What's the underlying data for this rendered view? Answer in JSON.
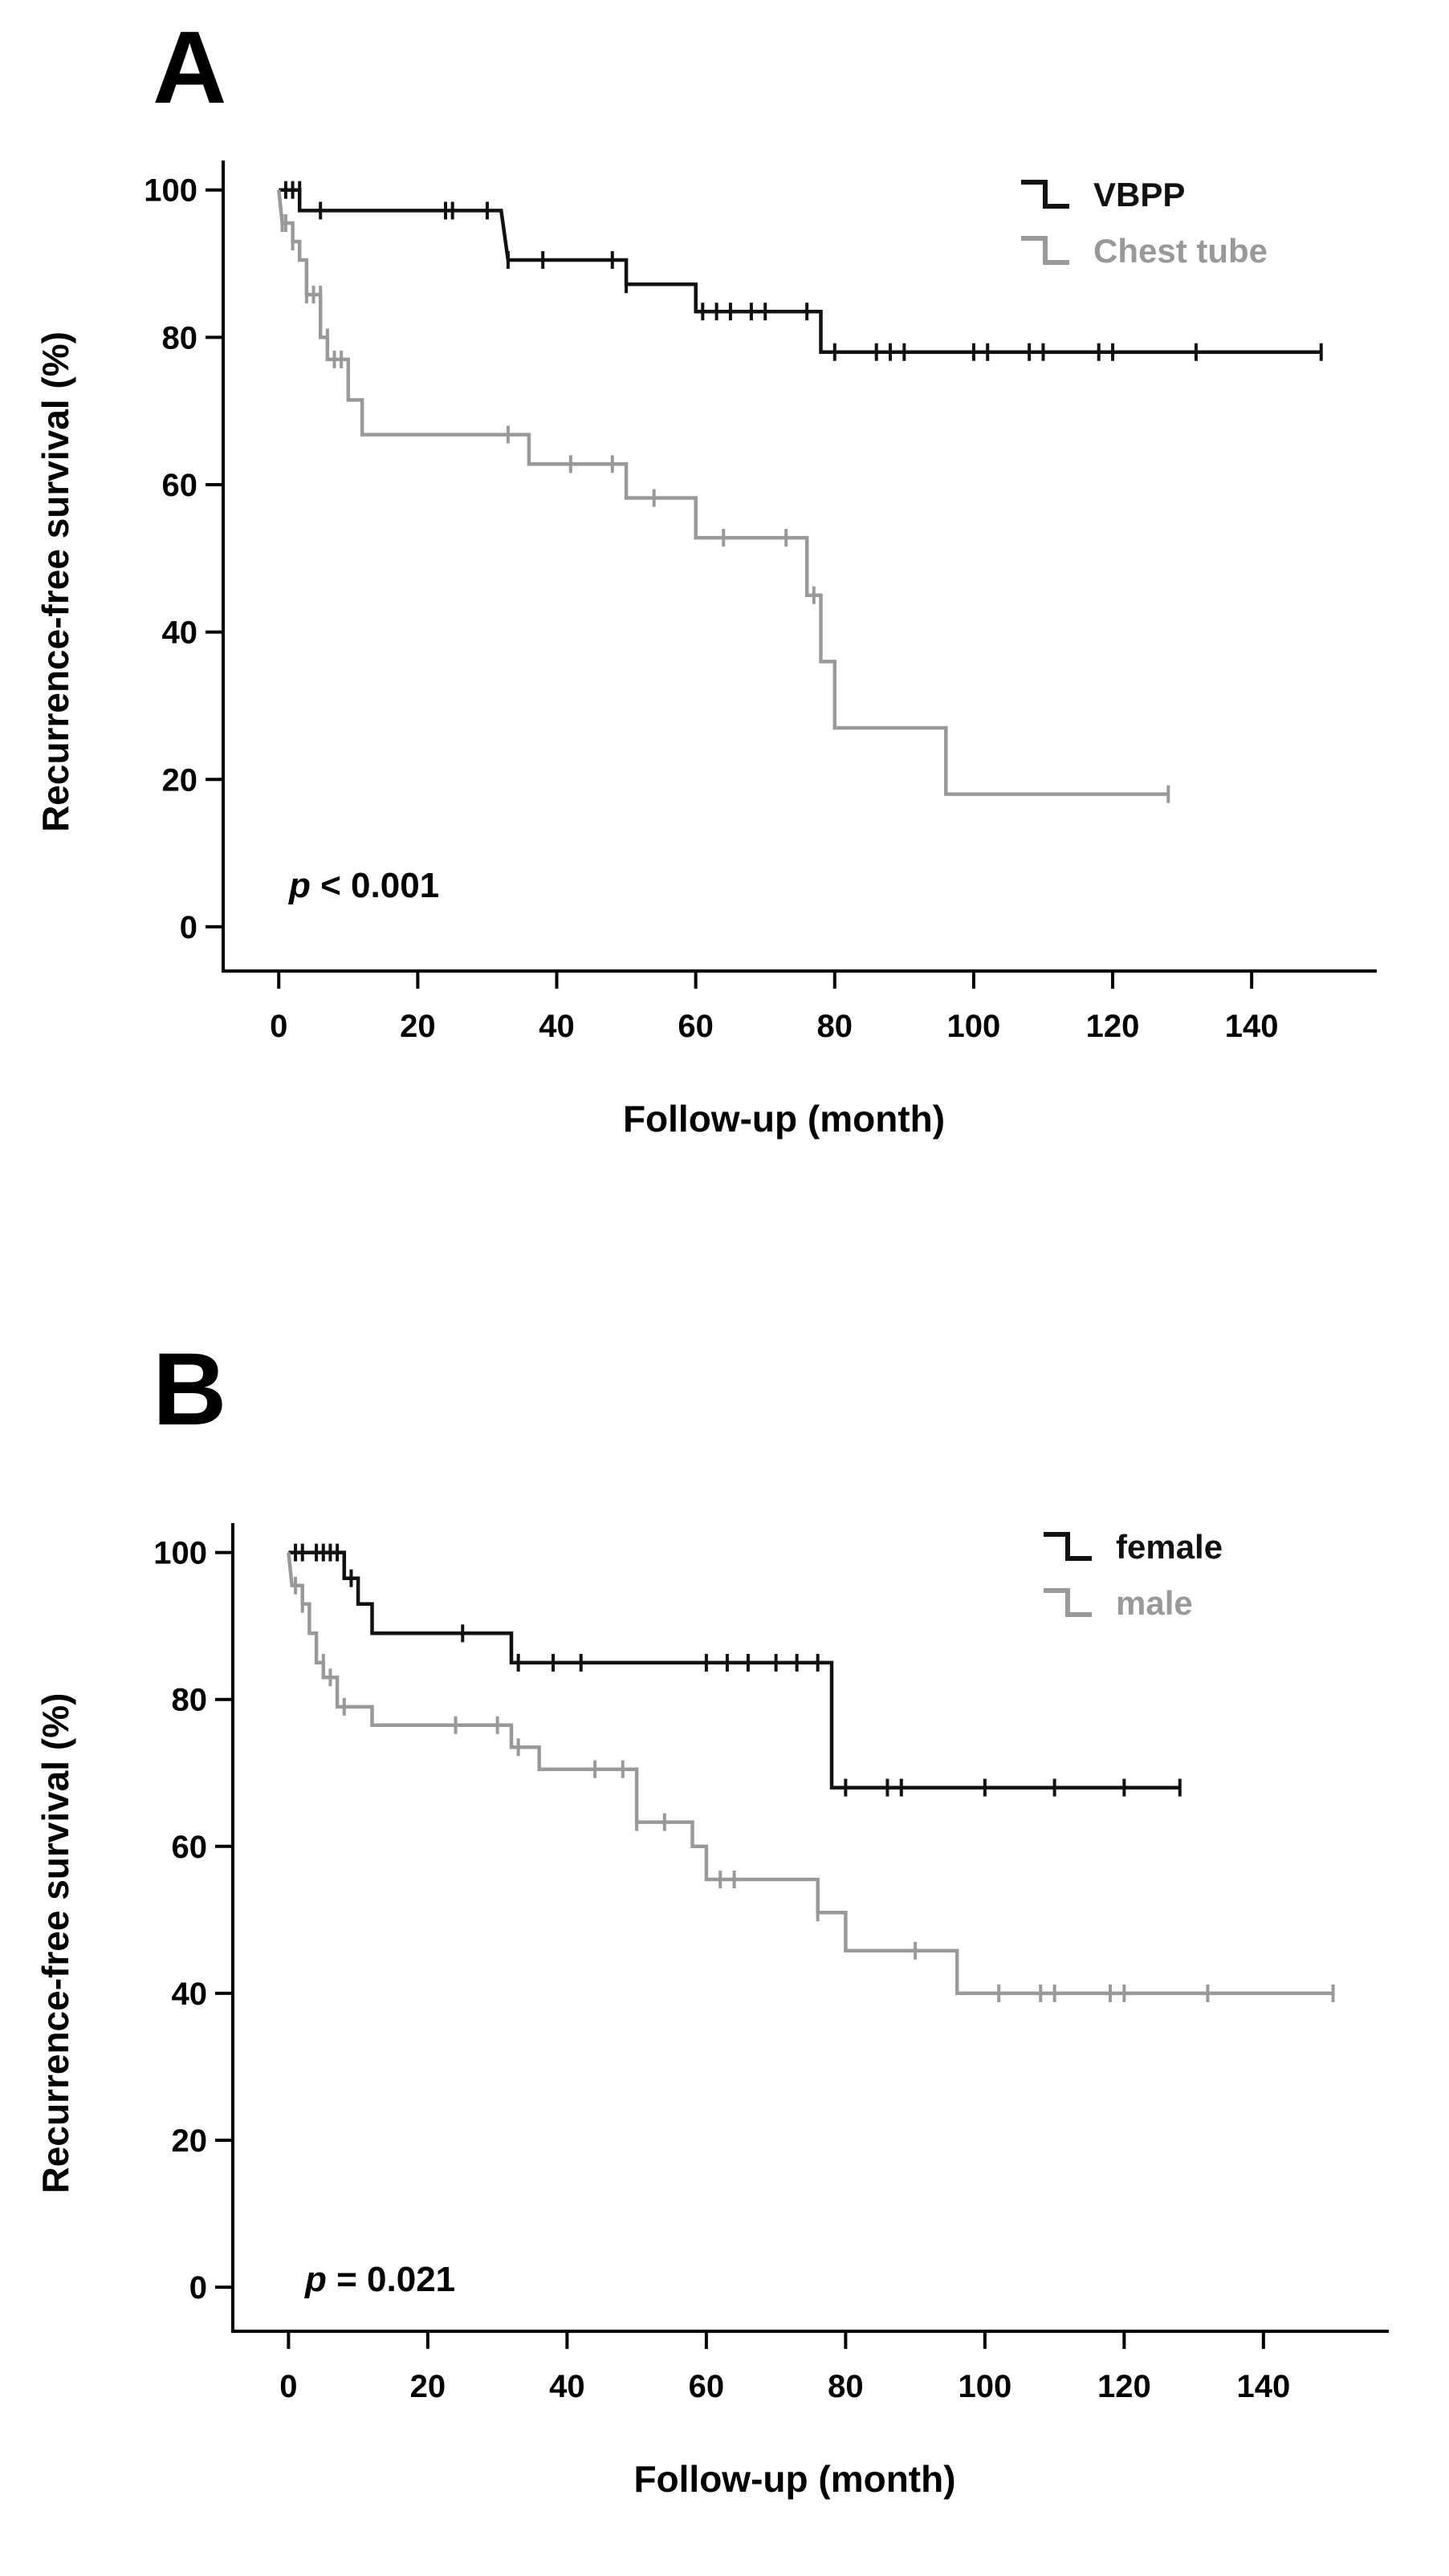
{
  "chart_data": [
    {
      "panel": "A",
      "type": "line",
      "xlabel": "Follow-up  (month)",
      "ylabel": "Recurrence-free  survival (%)",
      "xlim": [
        -8,
        158
      ],
      "ylim": [
        -6,
        104
      ],
      "xticks": [
        0,
        20,
        40,
        60,
        80,
        100,
        120,
        140
      ],
      "yticks": [
        0,
        20,
        40,
        60,
        80,
        100
      ],
      "legend_position": "top-right",
      "annotation": {
        "italic": "p",
        "rest": " < 0.001"
      },
      "series": [
        {
          "name": "VBPP",
          "color": "#111111",
          "steps": [
            [
              0,
              100
            ],
            [
              3,
              100
            ],
            [
              3,
              97.2
            ],
            [
              32,
              97.2
            ],
            [
              32,
              97.2
            ],
            [
              33,
              90.5
            ],
            [
              50,
              90.5
            ],
            [
              50,
              87.2
            ],
            [
              60,
              87.2
            ],
            [
              60,
              83.5
            ],
            [
              78,
              83.5
            ],
            [
              78,
              78
            ],
            [
              150,
              78
            ]
          ],
          "censors": [
            [
              1,
              100
            ],
            [
              2,
              100
            ],
            [
              3,
              100
            ],
            [
              6,
              97.2
            ],
            [
              24,
              97.2
            ],
            [
              25,
              97.2
            ],
            [
              30,
              97.2
            ],
            [
              33,
              90.5
            ],
            [
              38,
              90.5
            ],
            [
              48,
              90.5
            ],
            [
              50,
              87.2
            ],
            [
              61,
              83.5
            ],
            [
              63,
              83.5
            ],
            [
              65,
              83.5
            ],
            [
              68,
              83.5
            ],
            [
              70,
              83.5
            ],
            [
              76,
              83.5
            ],
            [
              80,
              78
            ],
            [
              86,
              78
            ],
            [
              88,
              78
            ],
            [
              90,
              78
            ],
            [
              100,
              78
            ],
            [
              102,
              78
            ],
            [
              108,
              78
            ],
            [
              110,
              78
            ],
            [
              118,
              78
            ],
            [
              120,
              78
            ],
            [
              132,
              78
            ],
            [
              150,
              78
            ]
          ]
        },
        {
          "name": "Chest tube",
          "color": "#999999",
          "steps": [
            [
              0,
              100
            ],
            [
              0.5,
              95.5
            ],
            [
              2,
              95.5
            ],
            [
              2,
              93
            ],
            [
              3,
              93
            ],
            [
              3,
              90.5
            ],
            [
              4,
              90.5
            ],
            [
              4,
              85.8
            ],
            [
              6,
              85.8
            ],
            [
              6,
              80
            ],
            [
              7,
              80
            ],
            [
              7,
              77
            ],
            [
              10,
              77
            ],
            [
              10,
              71.5
            ],
            [
              12,
              71.5
            ],
            [
              12,
              66.8
            ],
            [
              36,
              66.8
            ],
            [
              36,
              62.8
            ],
            [
              50,
              62.8
            ],
            [
              50,
              58.2
            ],
            [
              60,
              58.2
            ],
            [
              60,
              52.8
            ],
            [
              76,
              52.8
            ],
            [
              76,
              45
            ],
            [
              78,
              45
            ],
            [
              78,
              36
            ],
            [
              80,
              36
            ],
            [
              80,
              27
            ],
            [
              96,
              27
            ],
            [
              96,
              18
            ],
            [
              128,
              18
            ]
          ],
          "censors": [
            [
              0.5,
              95.5
            ],
            [
              1,
              95.5
            ],
            [
              2,
              93
            ],
            [
              4,
              85.8
            ],
            [
              5,
              85.8
            ],
            [
              6,
              85.8
            ],
            [
              7,
              80
            ],
            [
              8,
              77
            ],
            [
              9,
              77
            ],
            [
              33,
              66.8
            ],
            [
              42,
              62.8
            ],
            [
              48,
              62.8
            ],
            [
              54,
              58.2
            ],
            [
              64,
              52.8
            ],
            [
              73,
              52.8
            ],
            [
              77,
              45
            ],
            [
              128,
              18
            ]
          ]
        }
      ]
    },
    {
      "panel": "B",
      "type": "line",
      "xlabel": "Follow-up  (month)",
      "ylabel": "Recurrence-free  survival (%)",
      "xlim": [
        -8,
        158
      ],
      "ylim": [
        -6,
        104
      ],
      "xticks": [
        0,
        20,
        40,
        60,
        80,
        100,
        120,
        140
      ],
      "yticks": [
        0,
        20,
        40,
        60,
        80,
        100
      ],
      "legend_position": "top-right",
      "annotation": {
        "italic": "p",
        "rest": " = 0.021"
      },
      "series": [
        {
          "name": "female",
          "color": "#111111",
          "steps": [
            [
              0,
              100
            ],
            [
              8,
              100
            ],
            [
              8,
              96.5
            ],
            [
              10,
              96.5
            ],
            [
              10,
              93
            ],
            [
              12,
              93
            ],
            [
              12,
              89
            ],
            [
              32,
              89
            ],
            [
              32,
              85
            ],
            [
              78,
              85
            ],
            [
              78,
              68
            ],
            [
              128,
              68
            ]
          ],
          "censors": [
            [
              1,
              100
            ],
            [
              2,
              100
            ],
            [
              4,
              100
            ],
            [
              5,
              100
            ],
            [
              6,
              100
            ],
            [
              7,
              100
            ],
            [
              9,
              96.5
            ],
            [
              25,
              89
            ],
            [
              33,
              85
            ],
            [
              38,
              85
            ],
            [
              42,
              85
            ],
            [
              60,
              85
            ],
            [
              63,
              85
            ],
            [
              66,
              85
            ],
            [
              70,
              85
            ],
            [
              73,
              85
            ],
            [
              76,
              85
            ],
            [
              80,
              68
            ],
            [
              86,
              68
            ],
            [
              88,
              68
            ],
            [
              100,
              68
            ],
            [
              110,
              68
            ],
            [
              120,
              68
            ],
            [
              128,
              68
            ]
          ]
        },
        {
          "name": "male",
          "color": "#999999",
          "steps": [
            [
              0,
              100
            ],
            [
              0.5,
              95.5
            ],
            [
              2,
              95.5
            ],
            [
              2,
              93
            ],
            [
              3,
              93
            ],
            [
              3,
              89
            ],
            [
              4,
              89
            ],
            [
              4,
              85
            ],
            [
              5,
              85
            ],
            [
              5,
              83
            ],
            [
              7,
              83
            ],
            [
              7,
              79
            ],
            [
              12,
              79
            ],
            [
              12,
              76.5
            ],
            [
              32,
              76.5
            ],
            [
              32,
              73.5
            ],
            [
              36,
              73.5
            ],
            [
              36,
              70.5
            ],
            [
              50,
              70.5
            ],
            [
              50,
              63.3
            ],
            [
              58,
              63.3
            ],
            [
              58,
              60
            ],
            [
              60,
              60
            ],
            [
              60,
              55.5
            ],
            [
              76,
              55.5
            ],
            [
              76,
              51
            ],
            [
              80,
              51
            ],
            [
              80,
              45.8
            ],
            [
              96,
              45.8
            ],
            [
              96,
              40
            ],
            [
              150,
              40
            ]
          ],
          "censors": [
            [
              1,
              95.5
            ],
            [
              2,
              93
            ],
            [
              5,
              85
            ],
            [
              6,
              83
            ],
            [
              8,
              79
            ],
            [
              24,
              76.5
            ],
            [
              30,
              76.5
            ],
            [
              33,
              73.5
            ],
            [
              44,
              70.5
            ],
            [
              48,
              70.5
            ],
            [
              50,
              63.3
            ],
            [
              54,
              63.3
            ],
            [
              62,
              55.5
            ],
            [
              64,
              55.5
            ],
            [
              76,
              51
            ],
            [
              90,
              45.8
            ],
            [
              102,
              40
            ],
            [
              108,
              40
            ],
            [
              110,
              40
            ],
            [
              118,
              40
            ],
            [
              120,
              40
            ],
            [
              132,
              40
            ],
            [
              150,
              40
            ]
          ]
        }
      ]
    }
  ]
}
